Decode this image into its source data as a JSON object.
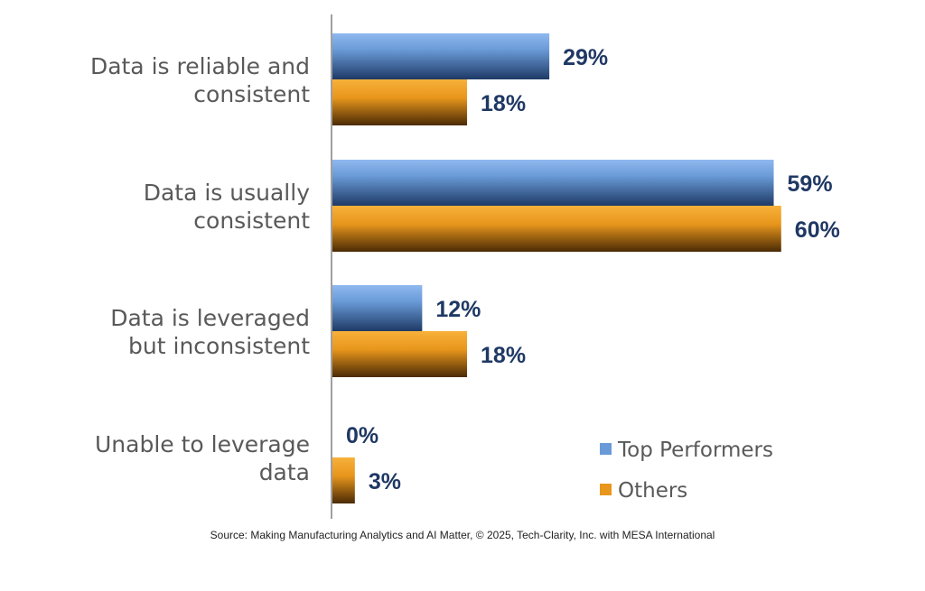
{
  "chart_data": {
    "type": "bar",
    "orientation": "horizontal",
    "categories": [
      [
        "Data is reliable and",
        "consistent"
      ],
      [
        "Data is usually",
        "consistent"
      ],
      [
        "Data is leveraged",
        "but inconsistent"
      ],
      [
        "Unable to leverage",
        "data"
      ]
    ],
    "series": [
      {
        "name": "Top Performers",
        "values": [
          29,
          59,
          12,
          0
        ],
        "labels": [
          "29%",
          "59%",
          "12%",
          "0%"
        ]
      },
      {
        "name": "Others",
        "values": [
          18,
          60,
          18,
          3
        ],
        "labels": [
          "18%",
          "60%",
          "18%",
          "3%"
        ]
      }
    ],
    "legend_position": "bottom-right",
    "grid": false
  },
  "colors": {
    "top_performers": "#6a9bd8",
    "others": "#e8961c",
    "data_label": "#1f3864",
    "axis": "#808080"
  },
  "source": "Source: Making Manufacturing Analytics and AI Matter, © 2025, Tech-Clarity, Inc. with MESA International"
}
